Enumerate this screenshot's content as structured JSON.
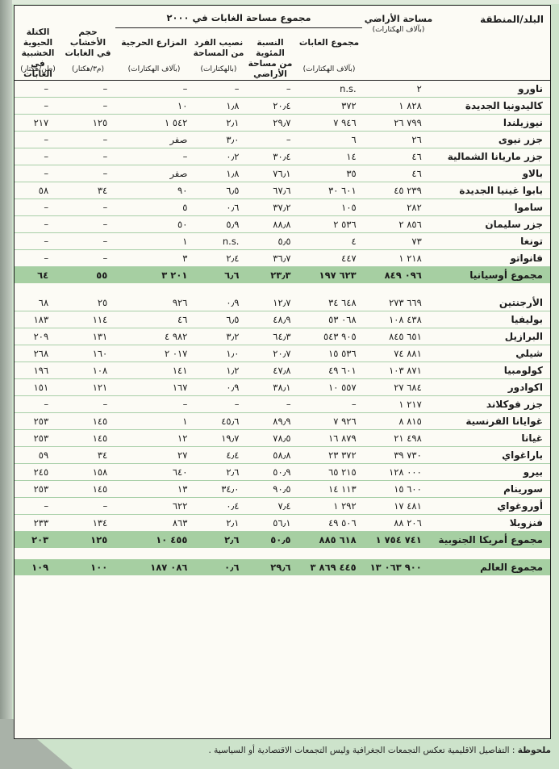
{
  "page": {
    "note": {
      "label": "ملحوظة",
      "text": " : التفاصيل الاقليمية تعكس التجمعات الجغرافية وليس التجمعات الاقتصادية أو السياسية ."
    }
  },
  "colors": {
    "page_bg": "#cde3cb",
    "paper": "#fcfbf5",
    "total_row_green": "#a6cfa2",
    "row_line_green": "#a8cfa8"
  },
  "table": {
    "header": {
      "country": "البلد/المنطقة",
      "group": "مجموع مساحة الغابات في ٢٠٠٠",
      "land": {
        "lines": [
          "مساحة الأراضي"
        ],
        "unit": "(بآلاف الهكتارات)"
      },
      "forest": {
        "lines": [
          "مجموع الغابات"
        ],
        "unit": "(بآلاف الهكتارات)"
      },
      "pct": {
        "lines": [
          "النسبة المئوية",
          "من مساحة",
          "الأراضي"
        ],
        "unit": ""
      },
      "percap": {
        "lines": [
          "نصيب الفرد",
          "من المساحة"
        ],
        "unit": "(بالهكتارات)"
      },
      "plant": {
        "lines": [
          "المزارع الحرجية"
        ],
        "unit": "(بآلاف الهكتارات)"
      },
      "vol": {
        "lines": [
          "حجم الأخشاب",
          "في الغابات"
        ],
        "unit": "(م٣/هكتار)"
      },
      "bio": {
        "lines": [
          "الكتلة الحيوية",
          "الخشبية في",
          "الغابات"
        ],
        "unit": "(طن/هكتار)"
      }
    },
    "sections": [
      {
        "rows": [
          {
            "name": "ناورو",
            "land": "٢",
            "forest": "n.s.",
            "pct": "–",
            "percap": "–",
            "plant": "–",
            "vol": "–",
            "bio": "–"
          },
          {
            "name": "كاليدونيا الجديدة",
            "land": "١ ٨٢٨",
            "forest": "٣٧٢",
            "pct": "٢٠٫٤",
            "percap": "١٫٨",
            "plant": "١٠",
            "vol": "–",
            "bio": "–"
          },
          {
            "name": "نيوزيلندا",
            "land": "٢٦ ٧٩٩",
            "forest": "٧ ٩٤٦",
            "pct": "٢٩٫٧",
            "percap": "٢٫١",
            "plant": "١ ٥٤٢",
            "vol": "١٢٥",
            "bio": "٢١٧"
          },
          {
            "name": "جزر نيوى",
            "land": "٢٦",
            "forest": "٦",
            "pct": "–",
            "percap": "٣٫٠",
            "plant": "صفر",
            "vol": "–",
            "bio": "–"
          },
          {
            "name": "جزر ماريانا الشمالية",
            "land": "٤٦",
            "forest": "١٤",
            "pct": "٣٠٫٤",
            "percap": "٠٫٢",
            "plant": "–",
            "vol": "–",
            "bio": "–"
          },
          {
            "name": "بالاو",
            "land": "٤٦",
            "forest": "٣٥",
            "pct": "٧٦٫١",
            "percap": "١٫٨",
            "plant": "صفر",
            "vol": "–",
            "bio": "–"
          },
          {
            "name": "بابوا غينيا الجديدة",
            "land": "٤٥ ٢٣٩",
            "forest": "٣٠ ٦٠١",
            "pct": "٦٧٫٦",
            "percap": "٦٫٥",
            "plant": "٩٠",
            "vol": "٣٤",
            "bio": "٥٨"
          },
          {
            "name": "ساموا",
            "land": "٢٨٢",
            "forest": "١٠٥",
            "pct": "٣٧٫٢",
            "percap": "٠٫٦",
            "plant": "٥",
            "vol": "–",
            "bio": "–"
          },
          {
            "name": "جزر سليمان",
            "land": "٢ ٨٥٦",
            "forest": "٢ ٥٣٦",
            "pct": "٨٨٫٨",
            "percap": "٥٫٩",
            "plant": "٥٠",
            "vol": "–",
            "bio": "–"
          },
          {
            "name": "تونغا",
            "land": "٧٣",
            "forest": "٤",
            "pct": "٥٫٥",
            "percap": "n.s.",
            "plant": "١",
            "vol": "–",
            "bio": "–"
          },
          {
            "name": "فانواتو",
            "land": "١ ٢١٨",
            "forest": "٤٤٧",
            "pct": "٣٦٫٧",
            "percap": "٢٫٤",
            "plant": "٣",
            "vol": "–",
            "bio": "–"
          },
          {
            "name": "مجموع أوسيانيا",
            "land": "٨٤٩ ٠٩٦",
            "forest": "١٩٧ ٦٢٣",
            "pct": "٢٣٫٣",
            "percap": "٦٫٦",
            "plant": "٣ ٢٠١",
            "vol": "٥٥",
            "bio": "٦٤",
            "total": true
          }
        ]
      },
      {
        "rows": [
          {
            "name": "الأرجنتين",
            "land": "٢٧٣ ٦٦٩",
            "forest": "٣٤ ٦٤٨",
            "pct": "١٢٫٧",
            "percap": "٠٫٩",
            "plant": "٩٢٦",
            "vol": "٢٥",
            "bio": "٦٨"
          },
          {
            "name": "بوليفيا",
            "land": "١٠٨ ٤٣٨",
            "forest": "٥٣ ٠٦٨",
            "pct": "٤٨٫٩",
            "percap": "٦٫٥",
            "plant": "٤٦",
            "vol": "١١٤",
            "bio": "١٨٣"
          },
          {
            "name": "البرازيل",
            "land": "٨٤٥ ٦٥١",
            "forest": "٥٤٣ ٩٠٥",
            "pct": "٦٤٫٣",
            "percap": "٣٫٢",
            "plant": "٤ ٩٨٢",
            "vol": "١٣١",
            "bio": "٢٠٩"
          },
          {
            "name": "شيلي",
            "land": "٧٤ ٨٨١",
            "forest": "١٥ ٥٣٦",
            "pct": "٢٠٫٧",
            "percap": "١٫٠",
            "plant": "٢ ٠١٧",
            "vol": "١٦٠",
            "bio": "٢٦٨"
          },
          {
            "name": "كولومبيا",
            "land": "١٠٣ ٨٧١",
            "forest": "٤٩ ٦٠١",
            "pct": "٤٧٫٨",
            "percap": "١٫٢",
            "plant": "١٤١",
            "vol": "١٠٨",
            "bio": "١٩٦"
          },
          {
            "name": "اكوادور",
            "land": "٢٧ ٦٨٤",
            "forest": "١٠ ٥٥٧",
            "pct": "٣٨٫١",
            "percap": "٠٫٩",
            "plant": "١٦٧",
            "vol": "١٢١",
            "bio": "١٥١"
          },
          {
            "name": "جزر فوكلاند",
            "land": "١ ٢١٧",
            "forest": "–",
            "pct": "–",
            "percap": "–",
            "plant": "–",
            "vol": "–",
            "bio": "–"
          },
          {
            "name": "غوايانا الفرنسية",
            "land": "٨ ٨١٥",
            "forest": "٧ ٩٢٦",
            "pct": "٨٩٫٩",
            "percap": "٤٥٫٦",
            "plant": "١",
            "vol": "١٤٥",
            "bio": "٢٥٣"
          },
          {
            "name": "غيانا",
            "land": "٢١ ٤٩٨",
            "forest": "١٦ ٨٧٩",
            "pct": "٧٨٫٥",
            "percap": "١٩٫٧",
            "plant": "١٢",
            "vol": "١٤٥",
            "bio": "٢٥٣"
          },
          {
            "name": "باراغواي",
            "land": "٣٩ ٧٣٠",
            "forest": "٢٣ ٣٧٢",
            "pct": "٥٨٫٨",
            "percap": "٤٫٤",
            "plant": "٢٧",
            "vol": "٣٤",
            "bio": "٥٩"
          },
          {
            "name": "بيرو",
            "land": "١٢٨ ٠٠٠",
            "forest": "٦٥ ٢١٥",
            "pct": "٥٠٫٩",
            "percap": "٢٫٦",
            "plant": "٦٤٠",
            "vol": "١٥٨",
            "bio": "٢٤٥"
          },
          {
            "name": "سورينام",
            "land": "١٥ ٦٠٠",
            "forest": "١٤ ١١٣",
            "pct": "٩٠٫٥",
            "percap": "٣٤٫٠",
            "plant": "١٣",
            "vol": "١٤٥",
            "bio": "٢٥٣"
          },
          {
            "name": "أوروغواي",
            "land": "١٧ ٤٨١",
            "forest": "١ ٢٩٢",
            "pct": "٧٫٤",
            "percap": "٠٫٤",
            "plant": "٦٢٢",
            "vol": "–",
            "bio": "–"
          },
          {
            "name": "فنزويلا",
            "land": "٨٨ ٢٠٦",
            "forest": "٤٩ ٥٠٦",
            "pct": "٥٦٫١",
            "percap": "٢٫١",
            "plant": "٨٦٣",
            "vol": "١٣٤",
            "bio": "٢٣٣"
          },
          {
            "name": "مجموع أمريكا الجنوبية",
            "land": "١ ٧٥٤ ٧٤١",
            "forest": "٨٨٥ ٦١٨",
            "pct": "٥٠٫٥",
            "percap": "٢٫٦",
            "plant": "١٠ ٤٥٥",
            "vol": "١٢٥",
            "bio": "٢٠٣",
            "total": true
          }
        ]
      },
      {
        "rows": [
          {
            "name": "مجموع العالم",
            "land": "١٣ ٠٦٣ ٩٠٠",
            "forest": "٣ ٨٦٩ ٤٤٥",
            "pct": "٢٩٫٦",
            "percap": "٠٫٦",
            "plant": "١٨٧ ٠٨٦",
            "vol": "١٠٠",
            "bio": "١٠٩",
            "total": true
          }
        ]
      }
    ]
  }
}
